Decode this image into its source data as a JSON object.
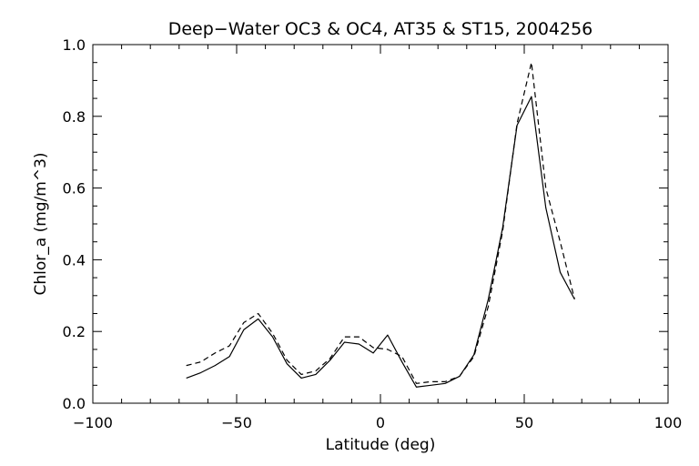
{
  "chart_data": {
    "type": "line",
    "title": "Deep−Water OC3 & OC4, AT35 & ST15, 2004256",
    "xlabel": "Latitude (deg)",
    "ylabel": "Chlor_a (mg/m^3)",
    "xlim": [
      -100,
      100
    ],
    "ylim": [
      0.0,
      1.0
    ],
    "xticks": [
      -100,
      -50,
      0,
      50,
      100
    ],
    "xtick_labels": [
      "−100",
      "−50",
      "0",
      "50",
      "100"
    ],
    "yticks": [
      0.0,
      0.2,
      0.4,
      0.6,
      0.8,
      1.0
    ],
    "ytick_labels": [
      "0.0",
      "0.2",
      "0.4",
      "0.6",
      "0.8",
      "1.0"
    ],
    "grid": false,
    "series": [
      {
        "style": "solid",
        "color": "#000000",
        "x": [
          -67.5,
          -62.5,
          -57.5,
          -52.5,
          -47.5,
          -42.5,
          -37.5,
          -32.5,
          -27.5,
          -22.5,
          -17.5,
          -12.5,
          -7.5,
          -2.5,
          2.5,
          7.5,
          12.5,
          17.5,
          22.5,
          27.5,
          32.5,
          37.5,
          42.5,
          47.5,
          52.5,
          57.5,
          62.5,
          67.5
        ],
        "y": [
          0.07,
          0.085,
          0.105,
          0.13,
          0.205,
          0.235,
          0.185,
          0.11,
          0.07,
          0.08,
          0.12,
          0.17,
          0.165,
          0.14,
          0.19,
          0.115,
          0.045,
          0.05,
          0.055,
          0.075,
          0.135,
          0.29,
          0.49,
          0.775,
          0.855,
          0.545,
          0.365,
          0.29
        ]
      },
      {
        "style": "dashed",
        "color": "#000000",
        "x": [
          -67.5,
          -62.5,
          -57.5,
          -52.5,
          -47.5,
          -42.5,
          -37.5,
          -32.5,
          -27.5,
          -22.5,
          -17.5,
          -12.5,
          -7.5,
          -2.5,
          2.5,
          7.5,
          12.5,
          17.5,
          22.5,
          27.5,
          32.5,
          37.5,
          42.5,
          47.5,
          52.5,
          57.5,
          62.5,
          67.5
        ],
        "y": [
          0.105,
          0.115,
          0.14,
          0.16,
          0.225,
          0.25,
          0.195,
          0.12,
          0.08,
          0.09,
          0.125,
          0.185,
          0.185,
          0.155,
          0.15,
          0.13,
          0.055,
          0.06,
          0.06,
          0.075,
          0.13,
          0.27,
          0.48,
          0.78,
          0.95,
          0.6,
          0.45,
          0.29
        ]
      }
    ]
  }
}
